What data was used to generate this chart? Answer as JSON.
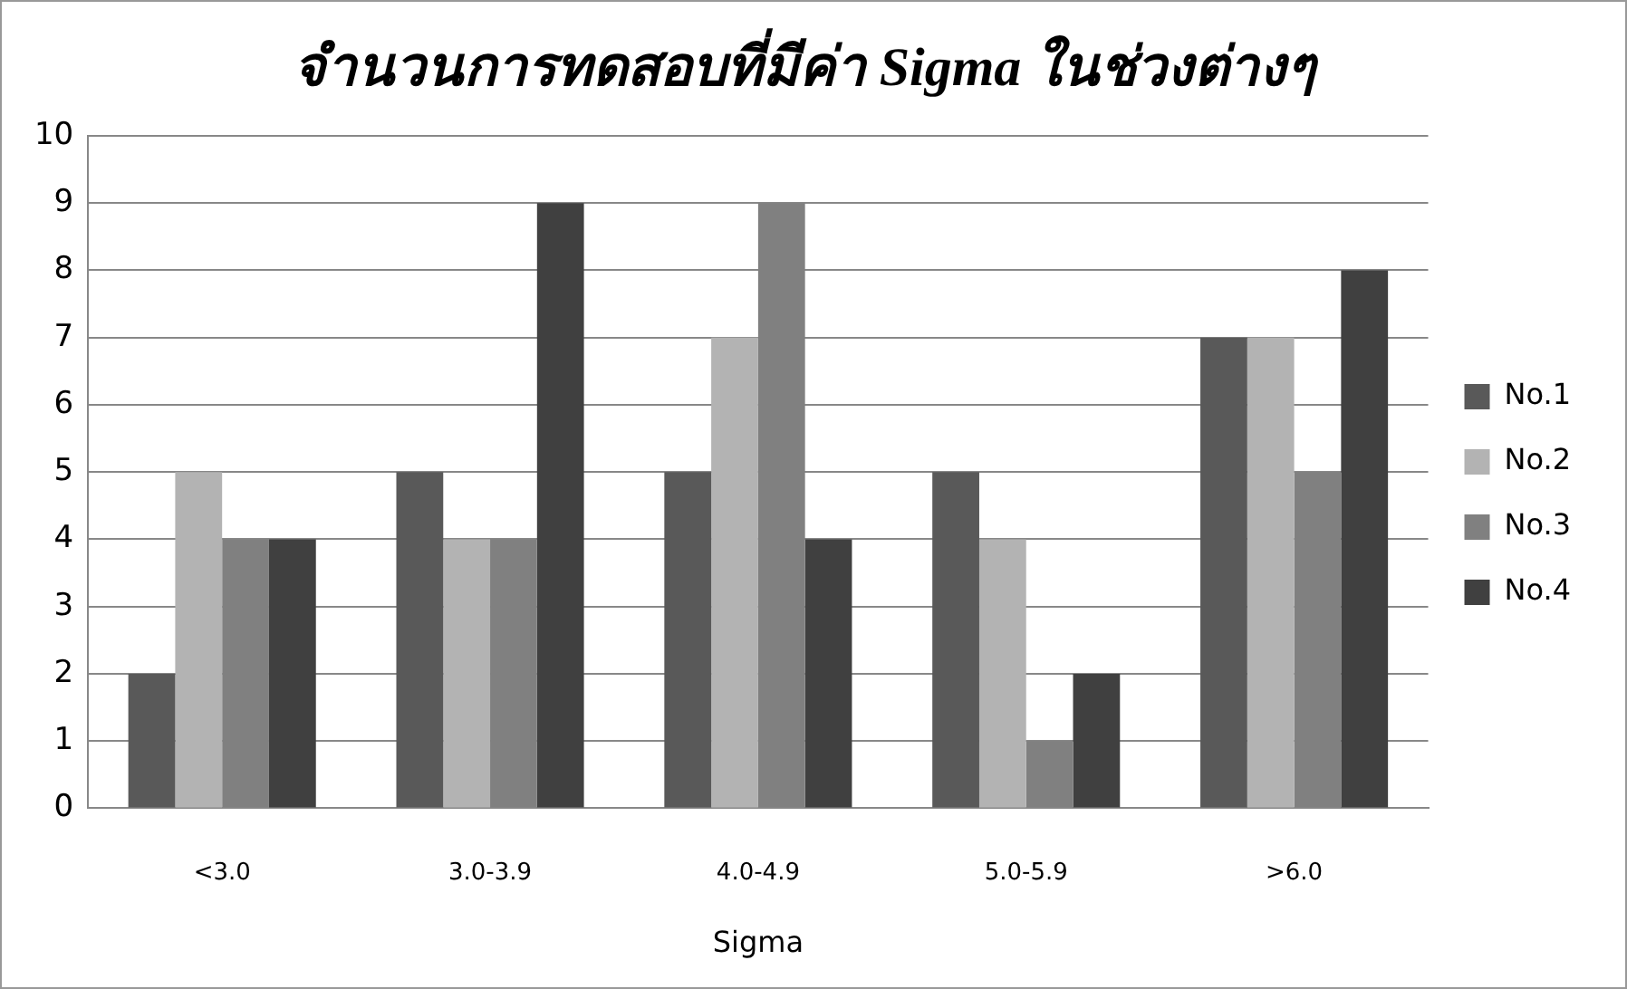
{
  "chart_data": {
    "type": "bar",
    "title": "จำนวนการทดสอบที่มีค่า Sigma ในช่วงต่างๆ",
    "xlabel": "Sigma",
    "categories": [
      "<3.0",
      "3.0-3.9",
      "4.0-4.9",
      "5.0-5.9",
      ">6.0"
    ],
    "series": [
      {
        "name": "No.1",
        "color": "#595959",
        "values": [
          2,
          5,
          5,
          5,
          7
        ]
      },
      {
        "name": "No.2",
        "color": "#b3b3b3",
        "values": [
          5,
          4,
          7,
          4,
          7
        ]
      },
      {
        "name": "No.3",
        "color": "#808080",
        "values": [
          4,
          4,
          9,
          1,
          5
        ]
      },
      {
        "name": "No.4",
        "color": "#404040",
        "values": [
          4,
          9,
          4,
          2,
          8
        ]
      }
    ],
    "ylim": [
      0,
      10
    ],
    "yticks": [
      0,
      1,
      2,
      3,
      4,
      5,
      6,
      7,
      8,
      9,
      10
    ],
    "grid": "y",
    "legend": "right"
  }
}
